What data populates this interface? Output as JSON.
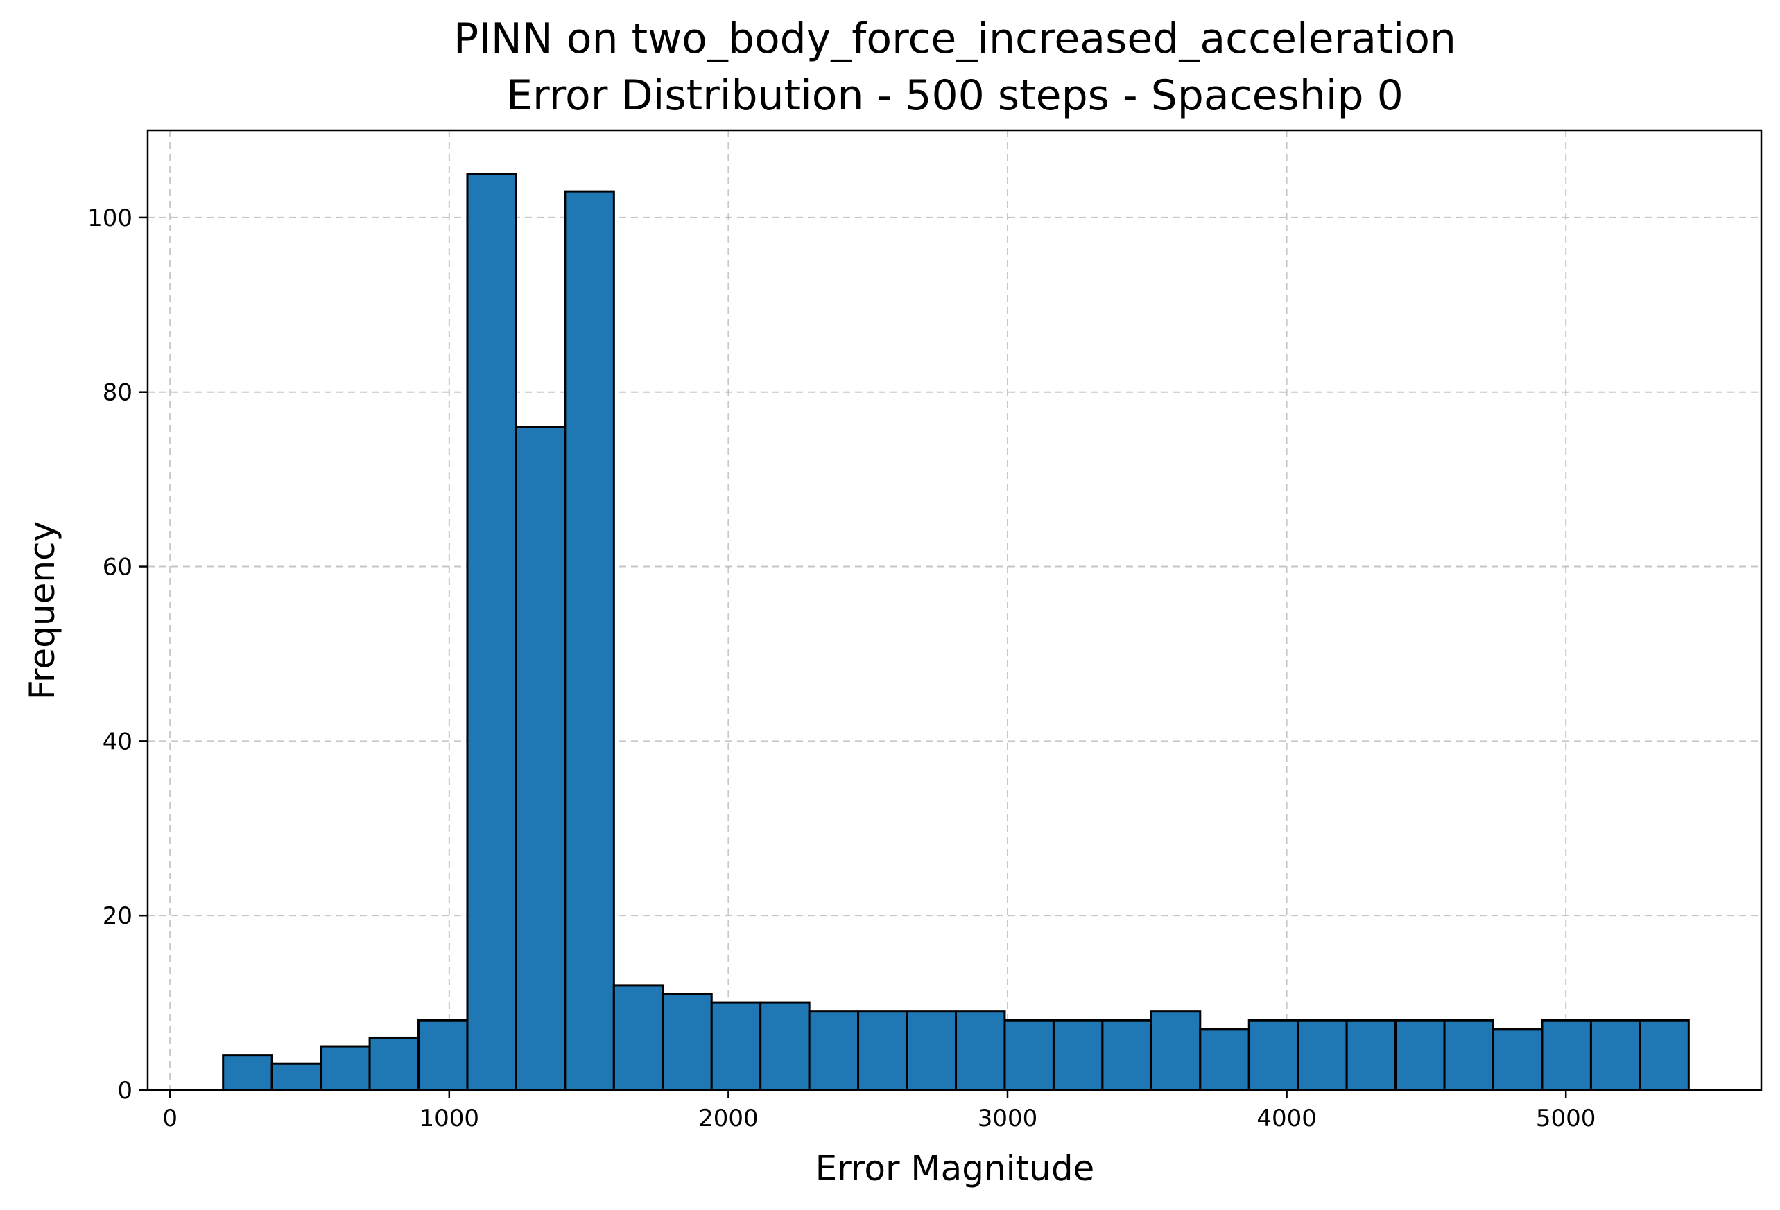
{
  "chart_data": {
    "type": "bar",
    "title_line1": "PINN on two_body_force_increased_acceleration",
    "title_line2": "Error Distribution - 500 steps - Spaceship 0",
    "xlabel": "Error Magnitude",
    "ylabel": "Frequency",
    "xlim": [
      -80,
      5700
    ],
    "ylim": [
      0,
      110
    ],
    "xticks": [
      0,
      1000,
      2000,
      3000,
      4000,
      5000
    ],
    "yticks": [
      0,
      20,
      40,
      60,
      80,
      100
    ],
    "grid": true,
    "bar_color": "#1f77b4",
    "bin_start": 190,
    "bin_width": 175,
    "values": [
      4,
      3,
      5,
      6,
      8,
      105,
      76,
      103,
      12,
      11,
      10,
      10,
      9,
      9,
      9,
      9,
      8,
      8,
      8,
      9,
      7,
      8,
      8,
      8,
      8,
      8,
      7,
      8,
      8,
      8
    ]
  }
}
